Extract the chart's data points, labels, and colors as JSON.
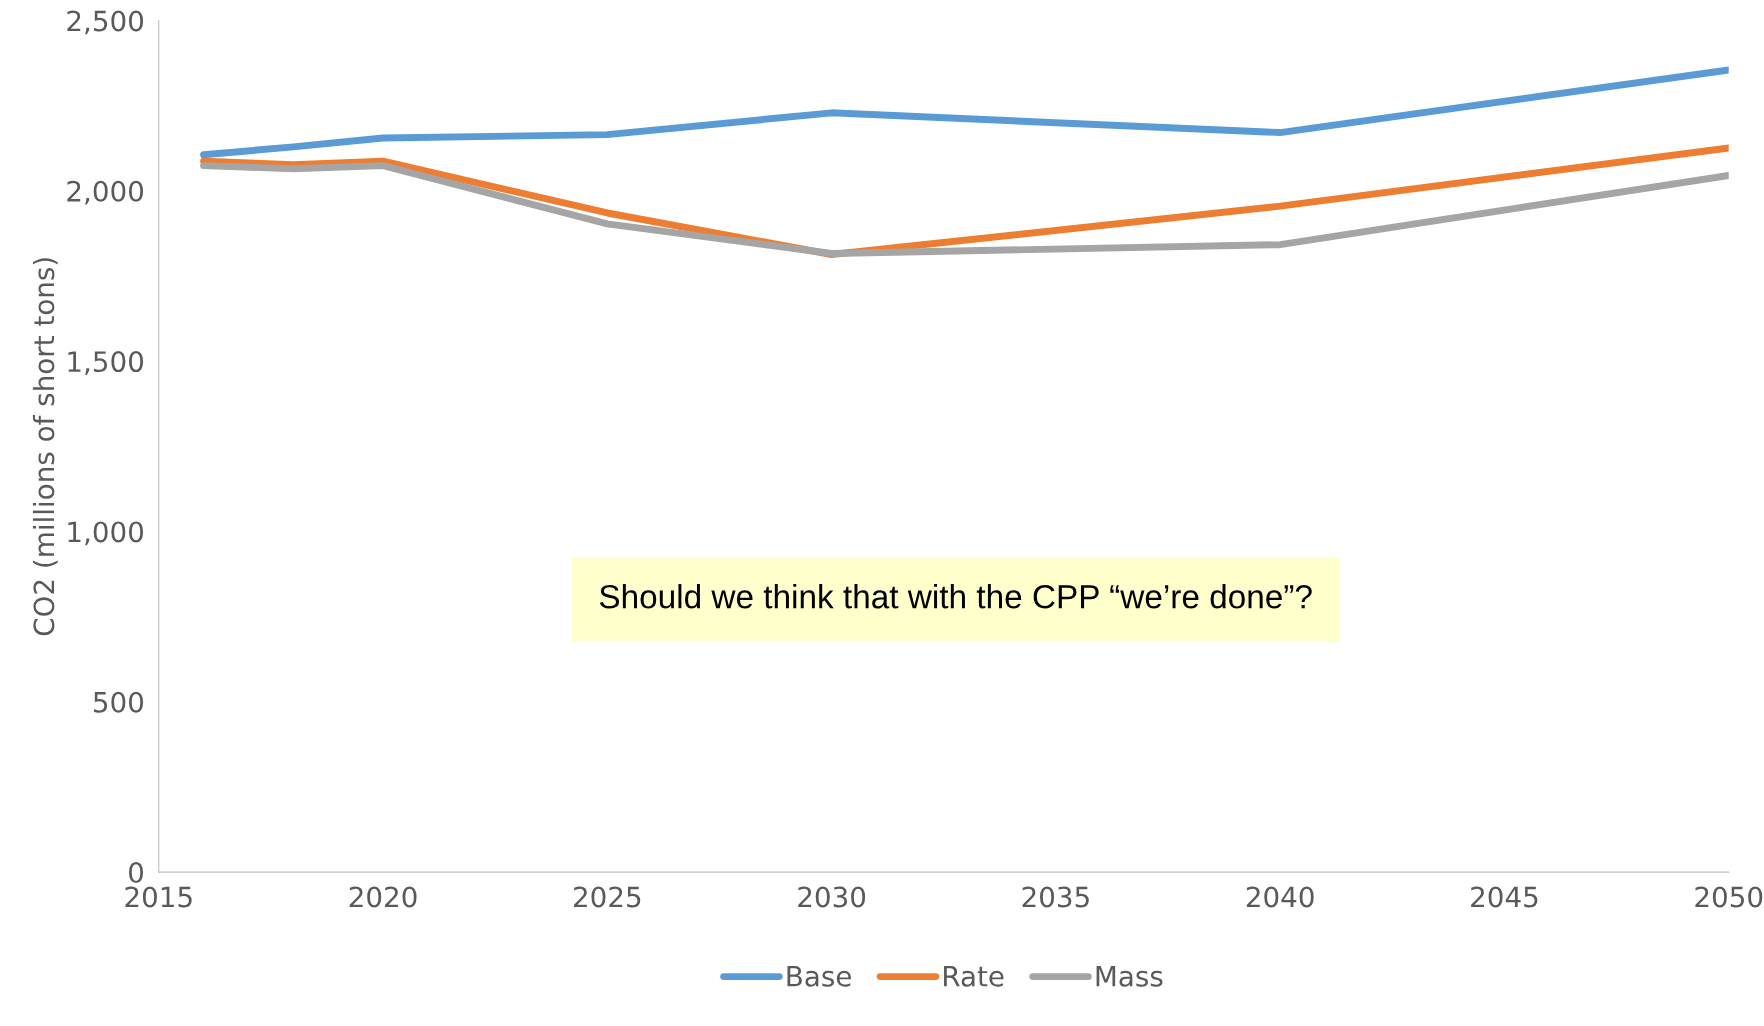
{
  "chart_data": {
    "type": "line",
    "ylabel": "CO2 (millions of short tons)",
    "x": [
      2016,
      2018,
      2020,
      2025,
      2030,
      2040,
      2050
    ],
    "series": [
      {
        "name": "Base",
        "color": "#5b9bd5",
        "values": [
          2106,
          2129,
          2155,
          2165,
          2229,
          2171,
          2355
        ]
      },
      {
        "name": "Rate",
        "color": "#ed7d31",
        "values": [
          2087,
          2077,
          2087,
          1935,
          1813,
          1955,
          2126
        ]
      },
      {
        "name": "Mass",
        "color": "#a5a5a5",
        "values": [
          2074,
          2065,
          2074,
          1903,
          1816,
          1842,
          2045
        ]
      }
    ],
    "xlim": [
      2015,
      2050
    ],
    "xticks": [
      2015,
      2020,
      2025,
      2030,
      2035,
      2040,
      2045,
      2050
    ],
    "ylim": [
      0,
      2500
    ],
    "yticks": [
      0,
      {
        "value": 500,
        "label": "500"
      },
      {
        "value": 1000,
        "label": "1,000"
      },
      {
        "value": 1500,
        "label": "1,500"
      },
      {
        "value": 2000,
        "label": "2,000"
      },
      {
        "value": 2500,
        "label": "2,500"
      }
    ],
    "annotations": [
      "Should we think that with the CPP “we’re done”?"
    ],
    "grid": false,
    "legend": "bottom",
    "marker": "none",
    "line_style": "solid"
  }
}
